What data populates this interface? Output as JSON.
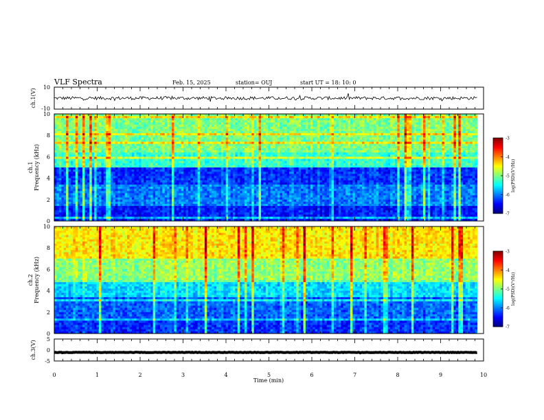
{
  "header": {
    "title": "VLF Spectra",
    "date": "Feb. 15, 2025",
    "station": "station= OUJ",
    "start": "start  UT =   18: 10: 0"
  },
  "colors": {
    "background": "#ffffff",
    "axes": "#000000",
    "colormap": [
      "#00007f",
      "#0000ff",
      "#007fff",
      "#00ffff",
      "#7fff7f",
      "#ffff00",
      "#ff7f00",
      "#ff0000",
      "#7f0000"
    ]
  },
  "chart_data": [
    {
      "id": "ch1-waveform",
      "type": "line",
      "ylabel": "ch.1(V)",
      "xlim": [
        0,
        10
      ],
      "ylim": [
        -10,
        10
      ],
      "yticks": [
        "10",
        "-10"
      ],
      "data_end_min": 9.85,
      "baseline_v": 0,
      "noise_amplitude_v": 3
    },
    {
      "id": "ch1-spectrogram",
      "type": "heatmap",
      "ylabel": "Frequency (kHz)",
      "ylabel_channel": "ch.1",
      "xlim": [
        0,
        10
      ],
      "ylim": [
        0,
        10
      ],
      "yticks": [
        "0",
        "2",
        "4",
        "6",
        "8",
        "10"
      ],
      "colorbar": {
        "label": "log(PSD)(V²/Hz)",
        "range": [
          -7,
          -3
        ],
        "ticks": [
          "-3",
          "-4",
          "-5",
          "-6",
          "-7"
        ]
      },
      "dominant_log_psd_by_band": [
        {
          "band_khz": [
            0,
            1.5
          ],
          "log_psd": -6.4
        },
        {
          "band_khz": [
            1.5,
            3.5
          ],
          "log_psd": -6.0
        },
        {
          "band_khz": [
            3.5,
            5
          ],
          "log_psd": -6.3
        },
        {
          "band_khz": [
            5,
            6.5
          ],
          "log_psd": -5.3
        },
        {
          "band_khz": [
            6.5,
            10
          ],
          "log_psd": -5.0
        }
      ]
    },
    {
      "id": "ch2-spectrogram",
      "type": "heatmap",
      "ylabel": "Frequency (kHz)",
      "ylabel_channel": "ch.2",
      "xlim": [
        0,
        10
      ],
      "ylim": [
        0,
        10
      ],
      "yticks": [
        "0",
        "2",
        "4",
        "6",
        "8",
        "10"
      ],
      "colorbar": {
        "label": "log(PSD)(V²/Hz)",
        "range": [
          -7,
          -3
        ],
        "ticks": [
          "-3",
          "-4",
          "-5",
          "-6",
          "-7"
        ]
      },
      "dominant_log_psd_by_band": [
        {
          "band_khz": [
            0,
            1.5
          ],
          "log_psd": -6.3
        },
        {
          "band_khz": [
            1.5,
            3.5
          ],
          "log_psd": -6.1
        },
        {
          "band_khz": [
            3.5,
            5
          ],
          "log_psd": -5.6
        },
        {
          "band_khz": [
            5,
            7
          ],
          "log_psd": -4.9
        },
        {
          "band_khz": [
            7,
            10
          ],
          "log_psd": -4.4
        }
      ]
    },
    {
      "id": "ch3-waveform",
      "type": "line",
      "ylabel": "ch.3(V)",
      "xlim": [
        0,
        10
      ],
      "ylim": [
        -5,
        5
      ],
      "yticks": [
        "5",
        "0",
        "-5"
      ],
      "data_end_min": 9.85,
      "baseline_v": -1.1,
      "noise_amplitude_v": 0.2
    }
  ],
  "xaxis": {
    "label": "Time (min)",
    "ticks": [
      "0",
      "1",
      "2",
      "3",
      "4",
      "5",
      "6",
      "7",
      "8",
      "9",
      "10"
    ]
  }
}
